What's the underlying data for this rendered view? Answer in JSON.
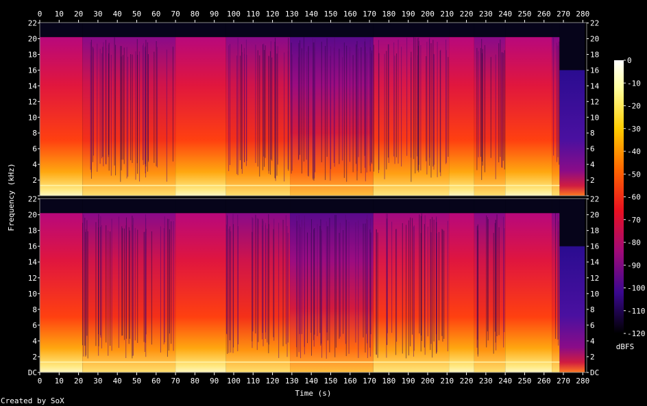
{
  "chart_data": {
    "type": "heatmap",
    "title": "",
    "xlabel": "Time (s)",
    "ylabel": "Frequency (kHz)",
    "xlim": [
      0,
      282
    ],
    "ylim": [
      0,
      22.05
    ],
    "x_ticks": [
      0,
      10,
      20,
      30,
      40,
      50,
      60,
      70,
      80,
      90,
      100,
      110,
      120,
      130,
      140,
      150,
      160,
      170,
      180,
      190,
      200,
      210,
      220,
      230,
      240,
      250,
      260,
      270,
      280
    ],
    "y_ticks": [
      {
        "value": 0,
        "label": "DC"
      },
      {
        "value": 2,
        "label": "2"
      },
      {
        "value": 4,
        "label": "4"
      },
      {
        "value": 6,
        "label": "6"
      },
      {
        "value": 8,
        "label": "8"
      },
      {
        "value": 10,
        "label": "10"
      },
      {
        "value": 12,
        "label": "12"
      },
      {
        "value": 14,
        "label": "14"
      },
      {
        "value": 16,
        "label": "16"
      },
      {
        "value": 18,
        "label": "18"
      },
      {
        "value": 20,
        "label": "20"
      },
      {
        "value": 22,
        "label": "22"
      }
    ],
    "channels": [
      {
        "segments": [
          {
            "start": 0,
            "end": 22,
            "cutoff_khz": 20.2,
            "level": "loud"
          },
          {
            "start": 22,
            "end": 70,
            "cutoff_khz": 20.2,
            "level": "busy"
          },
          {
            "start": 70,
            "end": 96,
            "cutoff_khz": 20.2,
            "level": "loud"
          },
          {
            "start": 96,
            "end": 129,
            "cutoff_khz": 20.2,
            "level": "busy"
          },
          {
            "start": 129,
            "end": 172,
            "cutoff_khz": 20.2,
            "level": "soft"
          },
          {
            "start": 172,
            "end": 211,
            "cutoff_khz": 20.2,
            "level": "medium"
          },
          {
            "start": 211,
            "end": 224,
            "cutoff_khz": 20.2,
            "level": "loud"
          },
          {
            "start": 224,
            "end": 240,
            "cutoff_khz": 20.2,
            "level": "busy"
          },
          {
            "start": 240,
            "end": 264,
            "cutoff_khz": 20.2,
            "level": "loud"
          },
          {
            "start": 264,
            "end": 268,
            "cutoff_khz": 20.2,
            "level": "busy"
          },
          {
            "start": 268,
            "end": 281,
            "cutoff_khz": 16,
            "level": "fade"
          }
        ]
      },
      {
        "segments": [
          {
            "start": 0,
            "end": 22,
            "cutoff_khz": 20.2,
            "level": "loud"
          },
          {
            "start": 22,
            "end": 70,
            "cutoff_khz": 20.2,
            "level": "busy"
          },
          {
            "start": 70,
            "end": 96,
            "cutoff_khz": 20.2,
            "level": "loud"
          },
          {
            "start": 96,
            "end": 129,
            "cutoff_khz": 20.2,
            "level": "busy"
          },
          {
            "start": 129,
            "end": 172,
            "cutoff_khz": 20.2,
            "level": "soft"
          },
          {
            "start": 172,
            "end": 211,
            "cutoff_khz": 20.2,
            "level": "medium"
          },
          {
            "start": 211,
            "end": 224,
            "cutoff_khz": 20.2,
            "level": "loud"
          },
          {
            "start": 224,
            "end": 240,
            "cutoff_khz": 20.2,
            "level": "busy"
          },
          {
            "start": 240,
            "end": 264,
            "cutoff_khz": 20.2,
            "level": "loud"
          },
          {
            "start": 264,
            "end": 268,
            "cutoff_khz": 20.2,
            "level": "busy"
          },
          {
            "start": 268,
            "end": 281,
            "cutoff_khz": 16,
            "level": "fade"
          }
        ]
      }
    ],
    "colorbar": {
      "label": "dBFS",
      "range": [
        -120,
        0
      ],
      "ticks": [
        0,
        -10,
        -20,
        -30,
        -40,
        -50,
        -60,
        -70,
        -80,
        -90,
        -100,
        -110,
        -120
      ]
    },
    "grid": false
  },
  "footer": {
    "credit": "Created by SoX"
  }
}
